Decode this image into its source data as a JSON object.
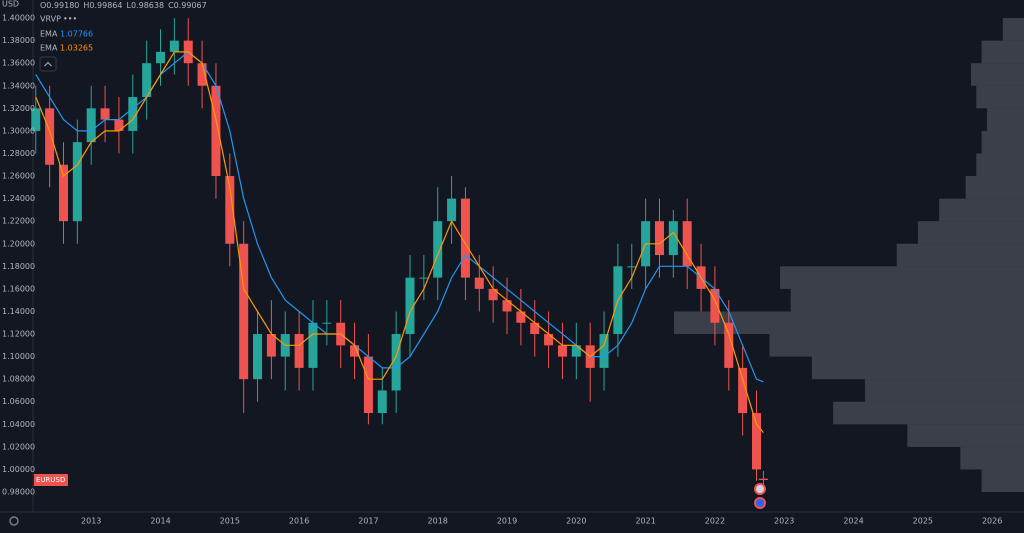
{
  "chart_data": {
    "type": "candlestick",
    "currency": "USD",
    "symbol": "EURUSD",
    "ohlc": [
      {
        "label": "O",
        "value": "0.99180"
      },
      {
        "label": "H",
        "value": "0.99864"
      },
      {
        "label": "L",
        "value": "0.98638"
      },
      {
        "label": "C",
        "value": "0.99067"
      }
    ],
    "indicator_label": "VRVP",
    "indicator_dots": "•••",
    "x": [
      2012.2,
      2012.4,
      2012.6,
      2012.8,
      2013.0,
      2013.2,
      2013.4,
      2013.6,
      2013.8,
      2014.0,
      2014.2,
      2014.4,
      2014.6,
      2014.8,
      2015.0,
      2015.2,
      2015.4,
      2015.6,
      2015.8,
      2016.0,
      2016.2,
      2016.4,
      2016.6,
      2016.8,
      2017.0,
      2017.2,
      2017.4,
      2017.6,
      2017.8,
      2018.0,
      2018.2,
      2018.4,
      2018.6,
      2018.8,
      2019.0,
      2019.2,
      2019.4,
      2019.6,
      2019.8,
      2020.0,
      2020.2,
      2020.4,
      2020.6,
      2020.8,
      2021.0,
      2021.2,
      2021.4,
      2021.6,
      2021.8,
      2022.0,
      2022.2,
      2022.4,
      2022.6,
      2022.7
    ],
    "open": [
      1.3,
      1.32,
      1.27,
      1.22,
      1.29,
      1.32,
      1.31,
      1.3,
      1.33,
      1.36,
      1.37,
      1.38,
      1.36,
      1.34,
      1.26,
      1.2,
      1.08,
      1.12,
      1.1,
      1.12,
      1.09,
      1.13,
      1.13,
      1.11,
      1.1,
      1.05,
      1.07,
      1.12,
      1.17,
      1.17,
      1.22,
      1.24,
      1.17,
      1.16,
      1.15,
      1.14,
      1.13,
      1.12,
      1.11,
      1.1,
      1.11,
      1.09,
      1.12,
      1.18,
      1.18,
      1.22,
      1.19,
      1.22,
      1.18,
      1.16,
      1.13,
      1.09,
      1.05,
      0.9918
    ],
    "high": [
      1.34,
      1.34,
      1.29,
      1.31,
      1.34,
      1.34,
      1.33,
      1.35,
      1.38,
      1.39,
      1.4,
      1.4,
      1.38,
      1.36,
      1.28,
      1.22,
      1.14,
      1.15,
      1.14,
      1.14,
      1.15,
      1.15,
      1.15,
      1.13,
      1.12,
      1.09,
      1.14,
      1.19,
      1.19,
      1.25,
      1.26,
      1.25,
      1.19,
      1.18,
      1.17,
      1.16,
      1.15,
      1.14,
      1.13,
      1.13,
      1.13,
      1.14,
      1.2,
      1.2,
      1.24,
      1.24,
      1.23,
      1.24,
      1.2,
      1.18,
      1.15,
      1.11,
      1.07,
      0.99864
    ],
    "low": [
      1.28,
      1.25,
      1.2,
      1.2,
      1.27,
      1.29,
      1.28,
      1.28,
      1.31,
      1.34,
      1.35,
      1.34,
      1.32,
      1.24,
      1.18,
      1.05,
      1.06,
      1.08,
      1.07,
      1.07,
      1.07,
      1.11,
      1.09,
      1.08,
      1.04,
      1.04,
      1.05,
      1.1,
      1.15,
      1.15,
      1.2,
      1.15,
      1.14,
      1.13,
      1.12,
      1.11,
      1.1,
      1.09,
      1.08,
      1.08,
      1.06,
      1.07,
      1.1,
      1.16,
      1.16,
      1.17,
      1.17,
      1.16,
      1.14,
      1.11,
      1.07,
      1.03,
      0.99,
      0.98638
    ],
    "close": [
      1.32,
      1.27,
      1.22,
      1.29,
      1.32,
      1.31,
      1.3,
      1.33,
      1.36,
      1.37,
      1.38,
      1.36,
      1.34,
      1.26,
      1.2,
      1.08,
      1.12,
      1.1,
      1.12,
      1.09,
      1.13,
      1.13,
      1.11,
      1.1,
      1.05,
      1.07,
      1.12,
      1.17,
      1.17,
      1.22,
      1.24,
      1.17,
      1.16,
      1.15,
      1.14,
      1.13,
      1.12,
      1.11,
      1.1,
      1.11,
      1.09,
      1.12,
      1.18,
      1.18,
      1.22,
      1.19,
      1.22,
      1.18,
      1.16,
      1.13,
      1.09,
      1.05,
      1.0,
      0.99067
    ],
    "up_color": "#26a69a",
    "down_color": "#ef5350",
    "series": [
      {
        "name": "EMA",
        "color": "#2196f3",
        "values": [
          1.35,
          1.33,
          1.31,
          1.3,
          1.3,
          1.31,
          1.31,
          1.32,
          1.33,
          1.35,
          1.36,
          1.37,
          1.36,
          1.34,
          1.3,
          1.24,
          1.2,
          1.17,
          1.15,
          1.14,
          1.13,
          1.12,
          1.12,
          1.11,
          1.1,
          1.09,
          1.09,
          1.1,
          1.12,
          1.14,
          1.17,
          1.19,
          1.18,
          1.17,
          1.16,
          1.15,
          1.14,
          1.13,
          1.12,
          1.11,
          1.1,
          1.1,
          1.11,
          1.13,
          1.16,
          1.18,
          1.18,
          1.18,
          1.17,
          1.16,
          1.14,
          1.11,
          1.08,
          1.07766
        ]
      },
      {
        "name": "EMA",
        "color": "#ff9800",
        "values": [
          1.33,
          1.3,
          1.26,
          1.27,
          1.29,
          1.3,
          1.3,
          1.31,
          1.33,
          1.35,
          1.37,
          1.37,
          1.36,
          1.31,
          1.25,
          1.16,
          1.14,
          1.12,
          1.11,
          1.11,
          1.12,
          1.12,
          1.12,
          1.11,
          1.08,
          1.08,
          1.1,
          1.14,
          1.16,
          1.19,
          1.22,
          1.2,
          1.18,
          1.16,
          1.15,
          1.14,
          1.13,
          1.12,
          1.11,
          1.11,
          1.1,
          1.11,
          1.15,
          1.17,
          1.2,
          1.2,
          1.21,
          1.19,
          1.17,
          1.15,
          1.12,
          1.08,
          1.04,
          1.03265
        ]
      }
    ],
    "volume_profile": {
      "color": "#5d606b",
      "bins": [
        0.98,
        1.0,
        1.02,
        1.04,
        1.06,
        1.08,
        1.1,
        1.12,
        1.14,
        1.16,
        1.18,
        1.2,
        1.22,
        1.24,
        1.26,
        1.28,
        1.3,
        1.32,
        1.34,
        1.36,
        1.38,
        1.4
      ],
      "volumes": [
        40,
        60,
        110,
        180,
        150,
        200,
        240,
        330,
        220,
        230,
        120,
        100,
        80,
        55,
        45,
        40,
        35,
        45,
        50,
        40,
        20
      ]
    },
    "xlim": [
      2012.16,
      2026.46
    ],
    "xticks": [
      2013,
      2014,
      2015,
      2016,
      2017,
      2018,
      2019,
      2020,
      2021,
      2022,
      2023,
      2024,
      2025,
      2026
    ],
    "ylim": [
      0.9623,
      1.416
    ],
    "yticks": [
      {
        "value": 0.98,
        "label": "0.98000"
      },
      {
        "value": 1.0,
        "label": "1.00000"
      },
      {
        "value": 1.02,
        "label": "1.02000"
      },
      {
        "value": 1.04,
        "label": "1.04000"
      },
      {
        "value": 1.06,
        "label": "1.06000"
      },
      {
        "value": 1.08,
        "label": "1.08000"
      },
      {
        "value": 1.1,
        "label": "1.10000"
      },
      {
        "value": 1.12,
        "label": "1.12000"
      },
      {
        "value": 1.14,
        "label": "1.14000"
      },
      {
        "value": 1.16,
        "label": "1.16000"
      },
      {
        "value": 1.18,
        "label": "1.18000"
      },
      {
        "value": 1.2,
        "label": "1.20000"
      },
      {
        "value": 1.22,
        "label": "1.22000"
      },
      {
        "value": 1.24,
        "label": "1.24000"
      },
      {
        "value": 1.26,
        "label": "1.26000"
      },
      {
        "value": 1.28,
        "label": "1.28000"
      },
      {
        "value": 1.3,
        "label": "1.30000"
      },
      {
        "value": 1.32,
        "label": "1.32000"
      },
      {
        "value": 1.34,
        "label": "1.34000"
      },
      {
        "value": 1.36,
        "label": "1.36000"
      },
      {
        "value": 1.38,
        "label": "1.38000"
      },
      {
        "value": 1.4,
        "label": "1.40000"
      }
    ],
    "grid": false
  }
}
